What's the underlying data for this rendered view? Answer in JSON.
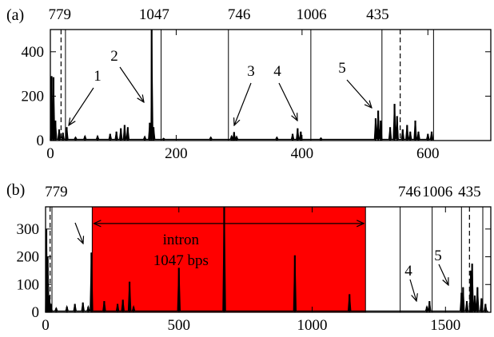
{
  "chart_data": [
    {
      "type": "line",
      "panel_label": "(a)",
      "xlim": [
        0,
        700
      ],
      "ylim": [
        0,
        500
      ],
      "x_ticks": [
        0,
        200,
        400,
        600
      ],
      "y_ticks": [
        0,
        200,
        400
      ],
      "grid": false,
      "top_labels": [
        {
          "text": "779",
          "x": 15
        },
        {
          "text": "1047",
          "x": 165
        },
        {
          "text": "746",
          "x": 300
        },
        {
          "text": "1006",
          "x": 415
        },
        {
          "text": "435",
          "x": 520
        }
      ],
      "boundaries": [
        {
          "x": 24,
          "style": "solid"
        },
        {
          "x": 176,
          "style": "solid"
        },
        {
          "x": 283,
          "style": "solid"
        },
        {
          "x": 414,
          "style": "solid"
        },
        {
          "x": 527,
          "style": "solid"
        },
        {
          "x": 609,
          "style": "solid"
        },
        {
          "x": 17,
          "style": "dashed"
        },
        {
          "x": 556,
          "style": "dashed"
        }
      ],
      "annotations": [
        {
          "text": "1",
          "x": 28,
          "y": 40
        },
        {
          "text": "2",
          "x": 160,
          "y": 140
        },
        {
          "text": "3",
          "x": 290,
          "y": 40
        },
        {
          "text": "4",
          "x": 396,
          "y": 50
        },
        {
          "text": "5",
          "x": 512,
          "y": 80
        }
      ],
      "peaks": [
        [
          2,
          290
        ],
        [
          5,
          285
        ],
        [
          8,
          90
        ],
        [
          14,
          50
        ],
        [
          20,
          35
        ],
        [
          26,
          60
        ],
        [
          40,
          15
        ],
        [
          55,
          20
        ],
        [
          75,
          20
        ],
        [
          95,
          30
        ],
        [
          105,
          40
        ],
        [
          112,
          55
        ],
        [
          118,
          70
        ],
        [
          123,
          60
        ],
        [
          150,
          18
        ],
        [
          158,
          80
        ],
        [
          161,
          500
        ],
        [
          164,
          60
        ],
        [
          180,
          10
        ],
        [
          255,
          15
        ],
        [
          288,
          20
        ],
        [
          292,
          38
        ],
        [
          296,
          18
        ],
        [
          360,
          15
        ],
        [
          385,
          30
        ],
        [
          393,
          55
        ],
        [
          398,
          40
        ],
        [
          430,
          12
        ],
        [
          517,
          100
        ],
        [
          521,
          135
        ],
        [
          525,
          90
        ],
        [
          540,
          60
        ],
        [
          547,
          165
        ],
        [
          551,
          110
        ],
        [
          560,
          50
        ],
        [
          567,
          70
        ],
        [
          572,
          40
        ],
        [
          580,
          90
        ],
        [
          585,
          40
        ],
        [
          600,
          30
        ],
        [
          606,
          40
        ]
      ]
    },
    {
      "type": "line",
      "panel_label": "(b)",
      "xlim": [
        0,
        1670
      ],
      "ylim": [
        0,
        380
      ],
      "x_ticks": [
        0,
        500,
        1000,
        1500
      ],
      "y_ticks": [
        0,
        100,
        200,
        300
      ],
      "grid": false,
      "top_labels": [
        {
          "text": "779",
          "x": 40
        },
        {
          "text": "746",
          "x": 1365
        },
        {
          "text": "1006",
          "x": 1470
        },
        {
          "text": "435",
          "x": 1590
        }
      ],
      "intron_region": {
        "x0": 175,
        "x1": 1200,
        "color": "#ff0000"
      },
      "intron_text": [
        "intron",
        "1047 bps"
      ],
      "intron_arrow_y": 320,
      "boundaries": [
        {
          "x": 24,
          "style": "solid"
        },
        {
          "x": 175,
          "style": "solid"
        },
        {
          "x": 670,
          "style": "solid"
        },
        {
          "x": 1200,
          "style": "solid"
        },
        {
          "x": 1330,
          "style": "solid"
        },
        {
          "x": 1450,
          "style": "solid"
        },
        {
          "x": 1560,
          "style": "solid"
        },
        {
          "x": 1640,
          "style": "solid"
        },
        {
          "x": 17,
          "style": "dashed"
        },
        {
          "x": 1590,
          "style": "dashed"
        }
      ],
      "annotations": [
        {
          "text": "4",
          "x": 1430,
          "y": 40
        },
        {
          "text": "5",
          "x": 1560,
          "y": 50
        }
      ],
      "peaks": [
        [
          3,
          300
        ],
        [
          8,
          200
        ],
        [
          14,
          60
        ],
        [
          20,
          30
        ],
        [
          40,
          15
        ],
        [
          80,
          20
        ],
        [
          110,
          30
        ],
        [
          140,
          35
        ],
        [
          160,
          20
        ],
        [
          172,
          215
        ],
        [
          220,
          40
        ],
        [
          270,
          30
        ],
        [
          290,
          45
        ],
        [
          315,
          110
        ],
        [
          330,
          20
        ],
        [
          500,
          160
        ],
        [
          670,
          380
        ],
        [
          935,
          205
        ],
        [
          1140,
          65
        ],
        [
          1430,
          20
        ],
        [
          1440,
          40
        ],
        [
          1560,
          70
        ],
        [
          1566,
          90
        ],
        [
          1580,
          40
        ],
        [
          1595,
          150
        ],
        [
          1600,
          175
        ],
        [
          1610,
          60
        ],
        [
          1620,
          90
        ],
        [
          1635,
          50
        ],
        [
          1650,
          30
        ]
      ]
    }
  ]
}
